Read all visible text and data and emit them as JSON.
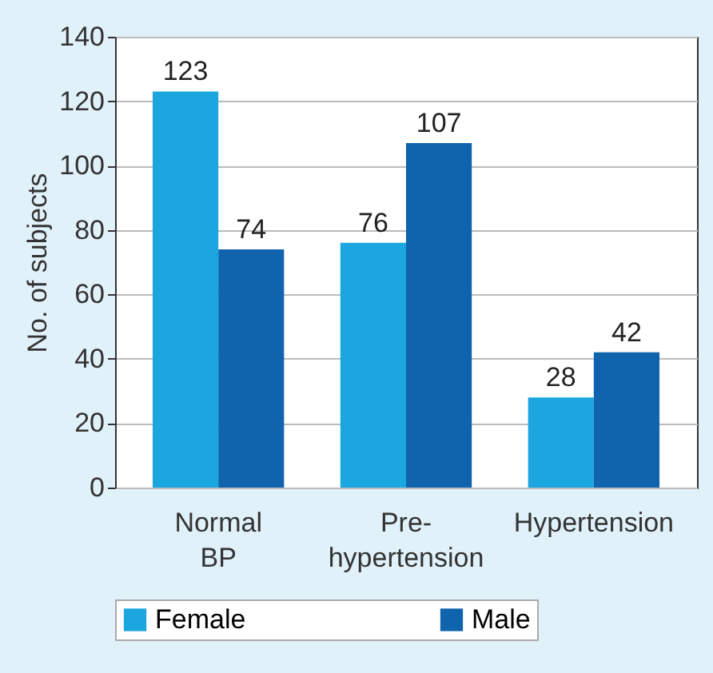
{
  "chart_data": {
    "type": "bar",
    "ylabel": "No. of subjects",
    "categories": [
      "Normal BP",
      "Pre-hypertension",
      "Hypertension"
    ],
    "series": [
      {
        "name": "Female",
        "color": "#1ba6e0",
        "values": [
          123,
          76,
          28
        ]
      },
      {
        "name": "Male",
        "color": "#0f64ad",
        "values": [
          74,
          107,
          42
        ]
      }
    ],
    "ylim": [
      0,
      140
    ],
    "yticks": [
      0,
      20,
      40,
      60,
      80,
      100,
      120,
      140
    ],
    "grid": "y",
    "legend": "bottom",
    "data_labels": true
  }
}
